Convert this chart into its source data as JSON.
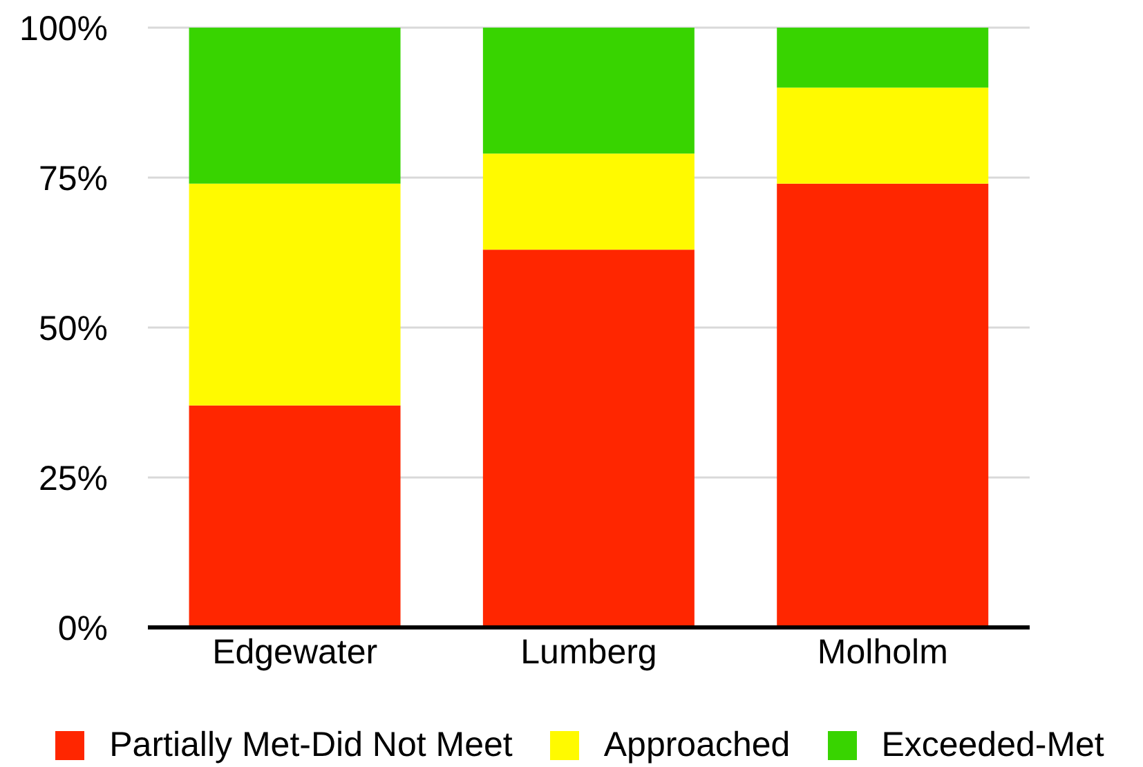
{
  "chart_data": {
    "type": "bar",
    "stacked": true,
    "categories": [
      "Edgewater",
      "Lumberg",
      "Molholm"
    ],
    "series": [
      {
        "name": "Partially Met-Did Not Meet",
        "color": "#ff2600",
        "values": [
          37,
          63,
          74
        ]
      },
      {
        "name": "Approached",
        "color": "#fffa00",
        "values": [
          37,
          16,
          16
        ]
      },
      {
        "name": "Exceeded-Met",
        "color": "#38d400",
        "values": [
          26,
          21,
          10
        ]
      }
    ],
    "ylim": [
      0,
      100
    ],
    "yticks": [
      {
        "value": 0,
        "label": "0%"
      },
      {
        "value": 25,
        "label": "25%"
      },
      {
        "value": 50,
        "label": "50%"
      },
      {
        "value": 75,
        "label": "75%"
      },
      {
        "value": 100,
        "label": "100%"
      }
    ],
    "grid": "y",
    "legend": "bottom"
  }
}
